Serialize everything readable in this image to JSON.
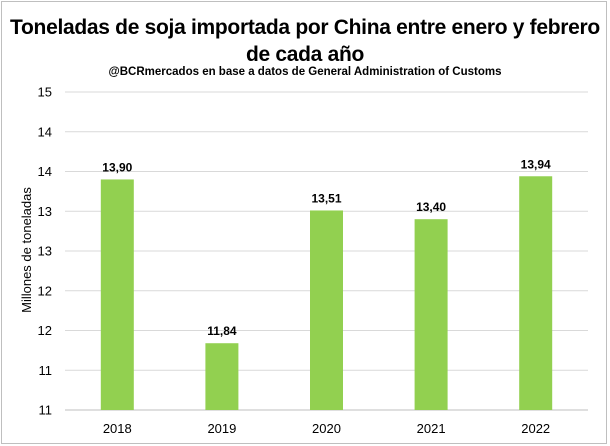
{
  "chart_data": {
    "type": "bar",
    "title": "Toneladas de soja importada por China entre enero y febrero de cada año",
    "subtitle": "@BCRmercados en base a datos de General Administration of Customs",
    "ylabel": "Millones de toneladas",
    "xlabel": "",
    "categories": [
      "2018",
      "2019",
      "2020",
      "2021",
      "2022"
    ],
    "values": [
      13.9,
      11.84,
      13.51,
      13.4,
      13.94
    ],
    "data_labels": [
      "13,90",
      "11,84",
      "13,51",
      "13,40",
      "13,94"
    ],
    "y_tick_labels": [
      "15",
      "14",
      "14",
      "13",
      "13",
      "12",
      "12",
      "11",
      "11"
    ],
    "ylim": [
      11,
      15
    ],
    "grid": true,
    "legend": "none",
    "bar_color": "#92d050",
    "grid_color": "#d9d9d9"
  }
}
